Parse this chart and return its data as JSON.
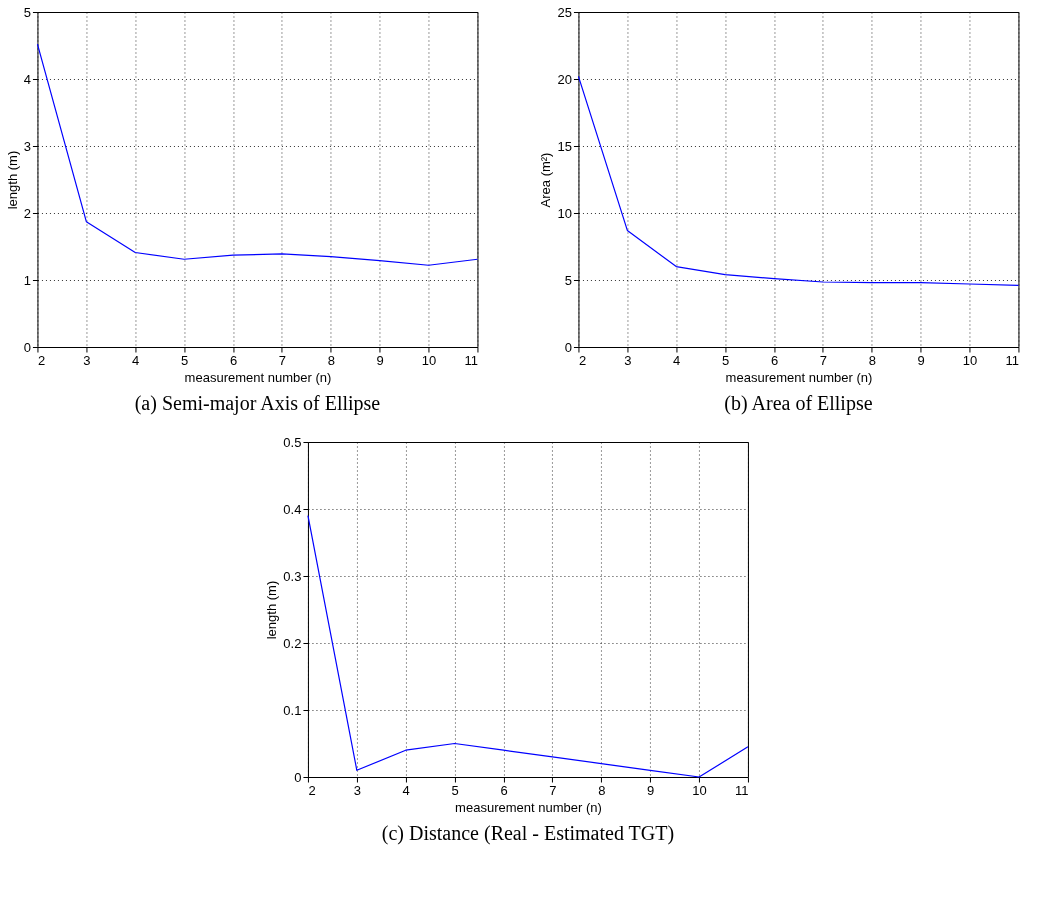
{
  "chart_data": [
    {
      "type": "line",
      "title": "(a) Semi-major Axis of Ellipse",
      "xlabel": "measurement number (n)",
      "ylabel": "length (m)",
      "x": [
        2,
        3,
        4,
        5,
        6,
        7,
        8,
        9,
        10,
        11
      ],
      "series": [
        {
          "color": "#0000ff",
          "line_style": "solid",
          "values": [
            4.52,
            1.87,
            1.41,
            1.31,
            1.37,
            1.39,
            1.35,
            1.29,
            1.22,
            1.31
          ]
        }
      ],
      "xlim": [
        2,
        11
      ],
      "xticks": [
        2,
        3,
        4,
        5,
        6,
        7,
        8,
        9,
        10,
        11
      ],
      "ylim": [
        0,
        5
      ],
      "yticks": [
        0,
        1,
        2,
        3,
        4,
        5
      ],
      "grid": true
    },
    {
      "type": "line",
      "title": "(b) Area of Ellipse",
      "xlabel": "measurement number (n)",
      "ylabel": "Area  (m²)",
      "x": [
        2,
        3,
        4,
        5,
        6,
        7,
        8,
        9,
        10,
        11
      ],
      "series": [
        {
          "color": "#0000ff",
          "line_style": "solid",
          "values": [
            20.2,
            8.7,
            6.0,
            5.4,
            5.1,
            4.85,
            4.8,
            4.8,
            4.7,
            4.6
          ]
        }
      ],
      "xlim": [
        2,
        11
      ],
      "xticks": [
        2,
        3,
        4,
        5,
        6,
        7,
        8,
        9,
        10,
        11
      ],
      "ylim": [
        0,
        25
      ],
      "yticks": [
        0,
        5,
        10,
        15,
        20,
        25
      ],
      "grid": true
    },
    {
      "type": "line",
      "title": "(c) Distance (Real - Estimated TGT)",
      "xlabel": "measurement number (n)",
      "ylabel": "length (m)",
      "x": [
        2,
        3,
        4,
        5,
        6,
        7,
        8,
        9,
        10,
        11
      ],
      "series": [
        {
          "color": "#0000ff",
          "line_style": "solid",
          "values": [
            0.39,
            0.01,
            0.04,
            0.05,
            0.04,
            0.03,
            0.02,
            0.01,
            0.0,
            0.045
          ]
        }
      ],
      "xlim": [
        2,
        11
      ],
      "xticks": [
        2,
        3,
        4,
        5,
        6,
        7,
        8,
        9,
        10,
        11
      ],
      "ylim": [
        0,
        0.5
      ],
      "yticks": [
        0,
        0.1,
        0.2,
        0.3,
        0.4,
        0.5
      ],
      "grid": true
    }
  ]
}
